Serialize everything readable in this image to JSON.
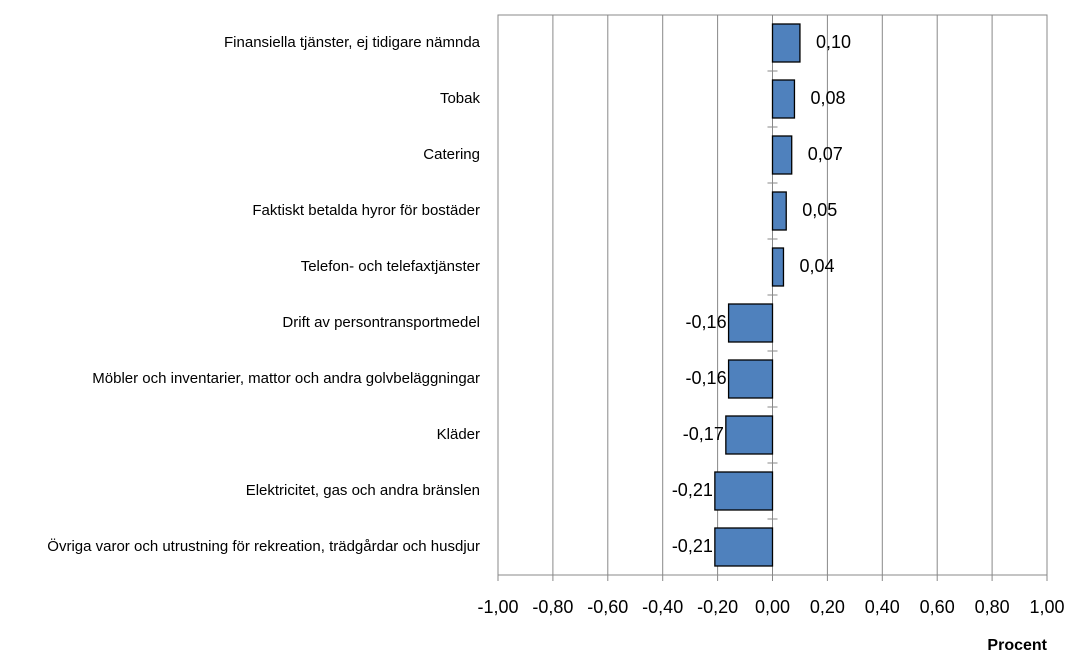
{
  "chart_data": {
    "type": "bar",
    "orientation": "horizontal",
    "x_label": "Procent",
    "categories": [
      "Finansiella tjänster, ej tidigare nämnda",
      "Tobak",
      "Catering",
      "Faktiskt betalda hyror för bostäder",
      "Telefon- och telefaxtjänster",
      "Drift av persontransportmedel",
      "Möbler och inventarier, mattor och andra golvbeläggningar",
      "Kläder",
      "Elektricitet, gas och andra bränslen",
      "Övriga varor och utrustning för rekreation, trädgårdar och husdjur"
    ],
    "values": [
      0.1,
      0.08,
      0.07,
      0.05,
      0.04,
      -0.16,
      -0.16,
      -0.17,
      -0.21,
      -0.21
    ],
    "value_labels": [
      "0,10",
      "0,08",
      "0,07",
      "0,05",
      "0,04",
      "-0,16",
      "-0,16",
      "-0,17",
      "-0,21",
      "-0,21"
    ],
    "color": "#4f81bd",
    "xlim": [
      -1,
      1
    ],
    "xticks": [
      {
        "value": -1,
        "label": "-1,00"
      },
      {
        "value": -0.8,
        "label": "-0,80"
      },
      {
        "value": -0.6,
        "label": "-0,60"
      },
      {
        "value": -0.4,
        "label": "-0,40"
      },
      {
        "value": -0.2,
        "label": "-0,20"
      },
      {
        "value": 0,
        "label": "0,00"
      },
      {
        "value": 0.2,
        "label": "0,20"
      },
      {
        "value": 0.4,
        "label": "0,40"
      },
      {
        "value": 0.6,
        "label": "0,60"
      },
      {
        "value": 0.8,
        "label": "0,80"
      },
      {
        "value": 1,
        "label": "1,00"
      }
    ],
    "grid": true
  }
}
